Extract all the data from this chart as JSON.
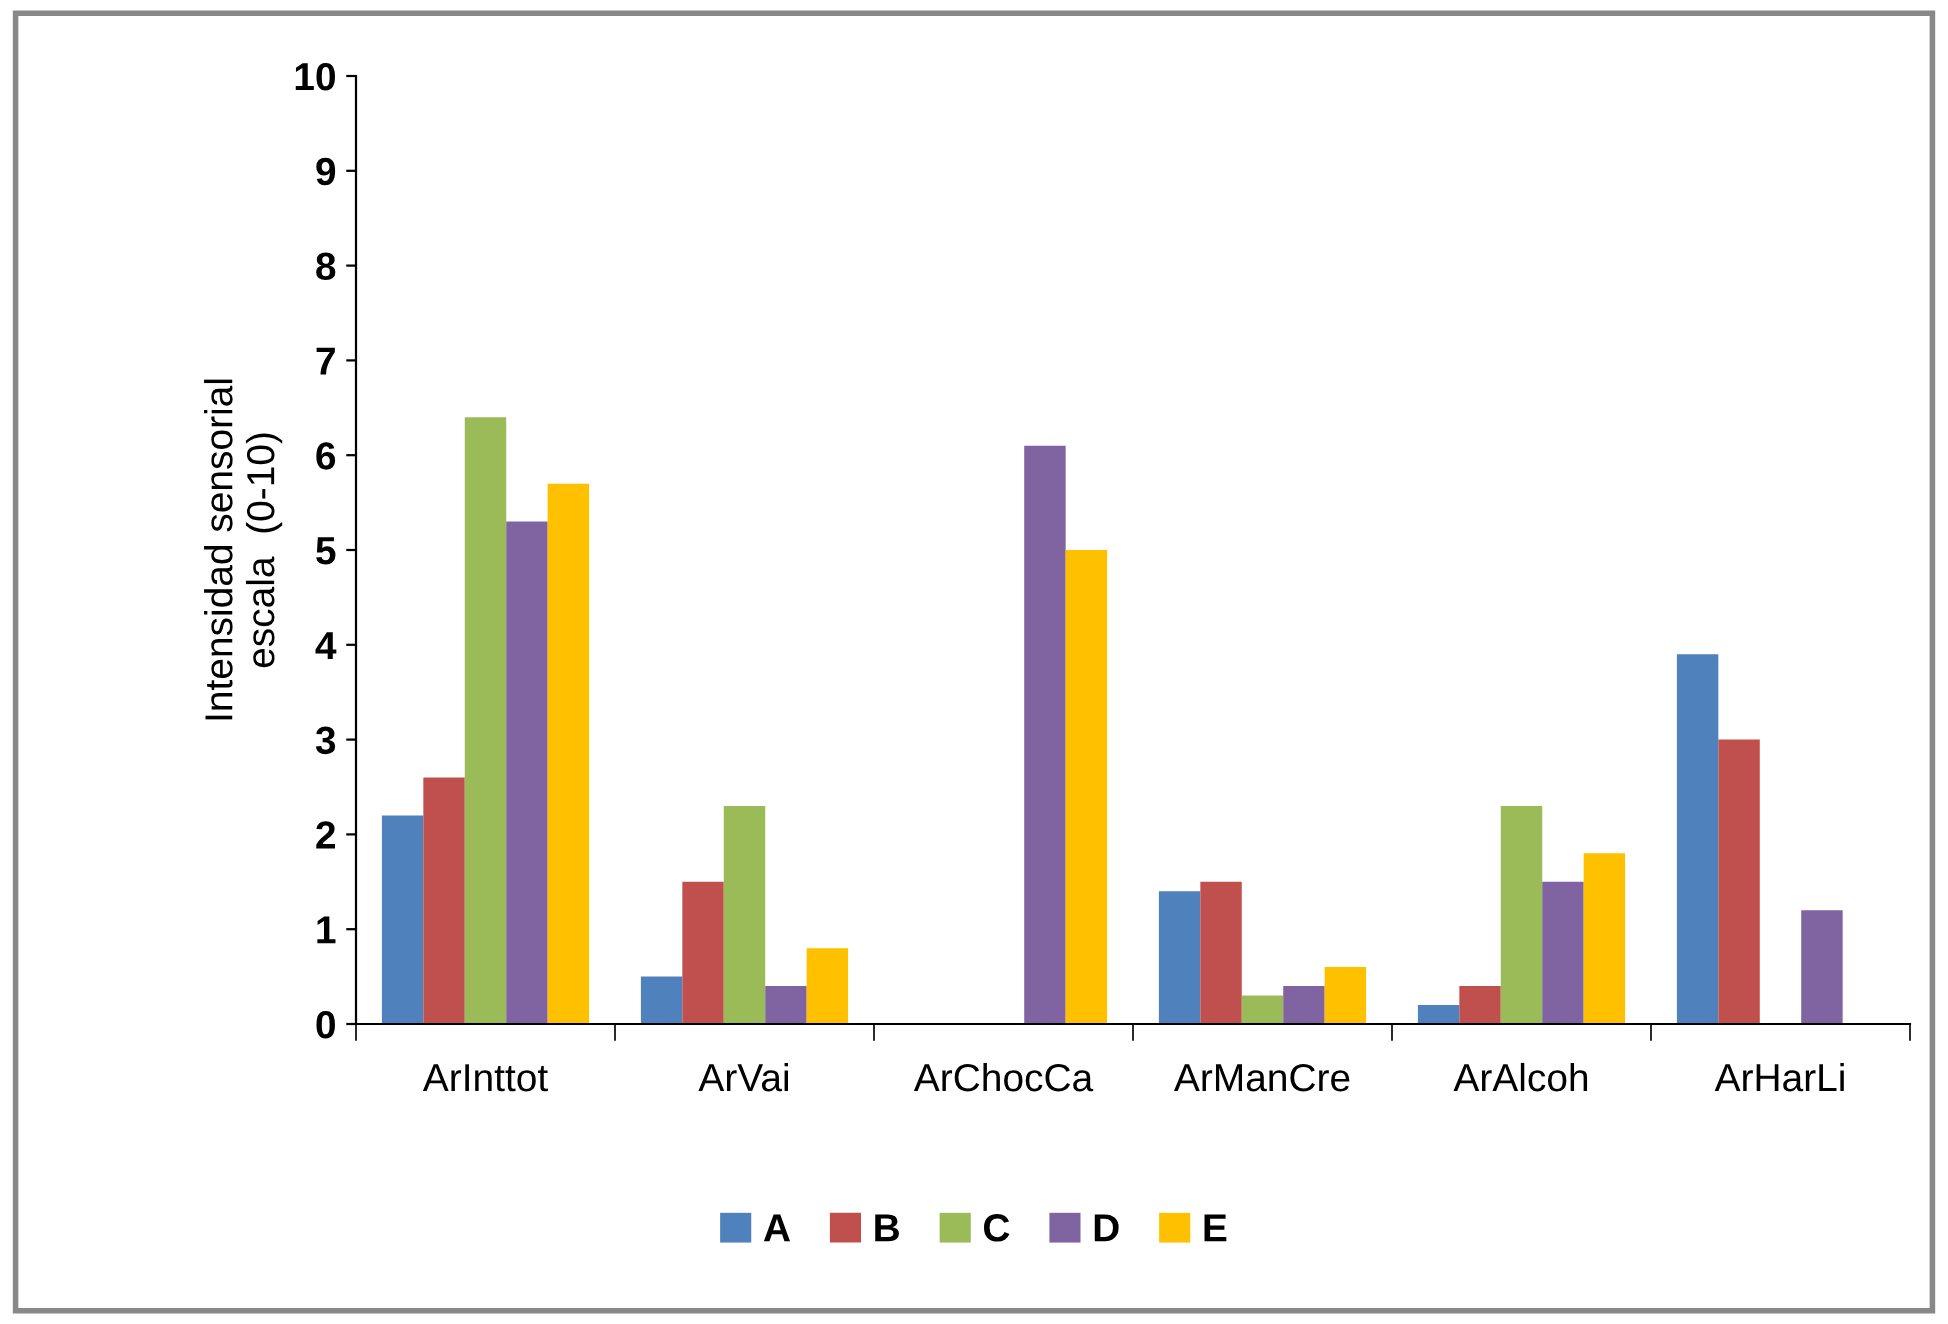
{
  "chart_data": {
    "type": "bar",
    "ylabel": "Intensidad sensorial\nescala  (0-10)",
    "categories": [
      "ArInttot",
      "ArVai",
      "ArChocCa",
      "ArManCre",
      "ArAlcoh",
      "ArHarLi"
    ],
    "series": [
      {
        "name": "A",
        "color": "#4f81bd",
        "values": [
          2.2,
          0.5,
          0,
          1.4,
          0.2,
          3.9
        ]
      },
      {
        "name": "B",
        "color": "#c0504d",
        "values": [
          2.6,
          1.5,
          0,
          1.5,
          0.4,
          3.0
        ]
      },
      {
        "name": "C",
        "color": "#9bbb59",
        "values": [
          6.4,
          2.3,
          0,
          0.3,
          2.3,
          0
        ]
      },
      {
        "name": "D",
        "color": "#8064a2",
        "values": [
          5.3,
          0.4,
          6.1,
          0.4,
          1.5,
          1.2
        ]
      },
      {
        "name": "E",
        "color": "#ffc000",
        "values": [
          5.7,
          0.8,
          5.0,
          0.6,
          1.8,
          0
        ]
      }
    ],
    "ylim": [
      0,
      10
    ],
    "yticks": [
      0,
      1,
      2,
      3,
      4,
      5,
      6,
      7,
      8,
      9,
      10
    ],
    "grid": false,
    "legend": "bottom"
  }
}
